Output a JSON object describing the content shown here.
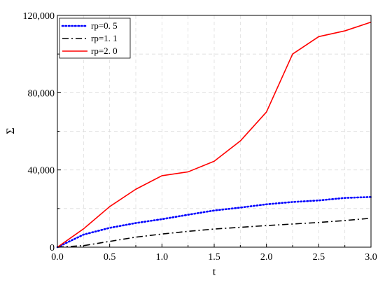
{
  "chart_data": {
    "type": "line",
    "xlabel": "t",
    "ylabel": "Σ",
    "xlim": [
      0,
      3
    ],
    "ylim": [
      0,
      120000
    ],
    "x_ticks": [
      0,
      0.5,
      1,
      1.5,
      2,
      2.5,
      3
    ],
    "x_tick_labels": [
      "0.0",
      "0.5",
      "1.0",
      "1.5",
      "2.0",
      "2.5",
      "3.0"
    ],
    "y_ticks": [
      0,
      40000,
      80000,
      120000
    ],
    "y_tick_labels": [
      "0",
      "40,000",
      "80,000",
      "120,000"
    ],
    "grid": true,
    "legend_position": "top-left",
    "x": [
      0,
      0.25,
      0.5,
      0.75,
      1,
      1.25,
      1.5,
      1.75,
      2,
      2.25,
      2.5,
      2.75,
      3
    ],
    "series": [
      {
        "name": "rp=0. 5",
        "color": "#0000ff",
        "style": "dotted",
        "values": [
          0,
          6500,
          10000,
          12500,
          14500,
          16800,
          19000,
          20500,
          22200,
          23400,
          24200,
          25500,
          26000
        ]
      },
      {
        "name": "rp=1. 1",
        "color": "#000000",
        "style": "dashdot",
        "values": [
          0,
          800,
          3000,
          5200,
          6800,
          8200,
          9400,
          10300,
          11200,
          12000,
          12800,
          13800,
          15000
        ]
      },
      {
        "name": "rp=2. 0",
        "color": "#ff0000",
        "style": "solid",
        "values": [
          0,
          9500,
          21000,
          30000,
          37000,
          39000,
          44500,
          55000,
          70000,
          100000,
          109000,
          112000,
          116500
        ]
      }
    ]
  }
}
